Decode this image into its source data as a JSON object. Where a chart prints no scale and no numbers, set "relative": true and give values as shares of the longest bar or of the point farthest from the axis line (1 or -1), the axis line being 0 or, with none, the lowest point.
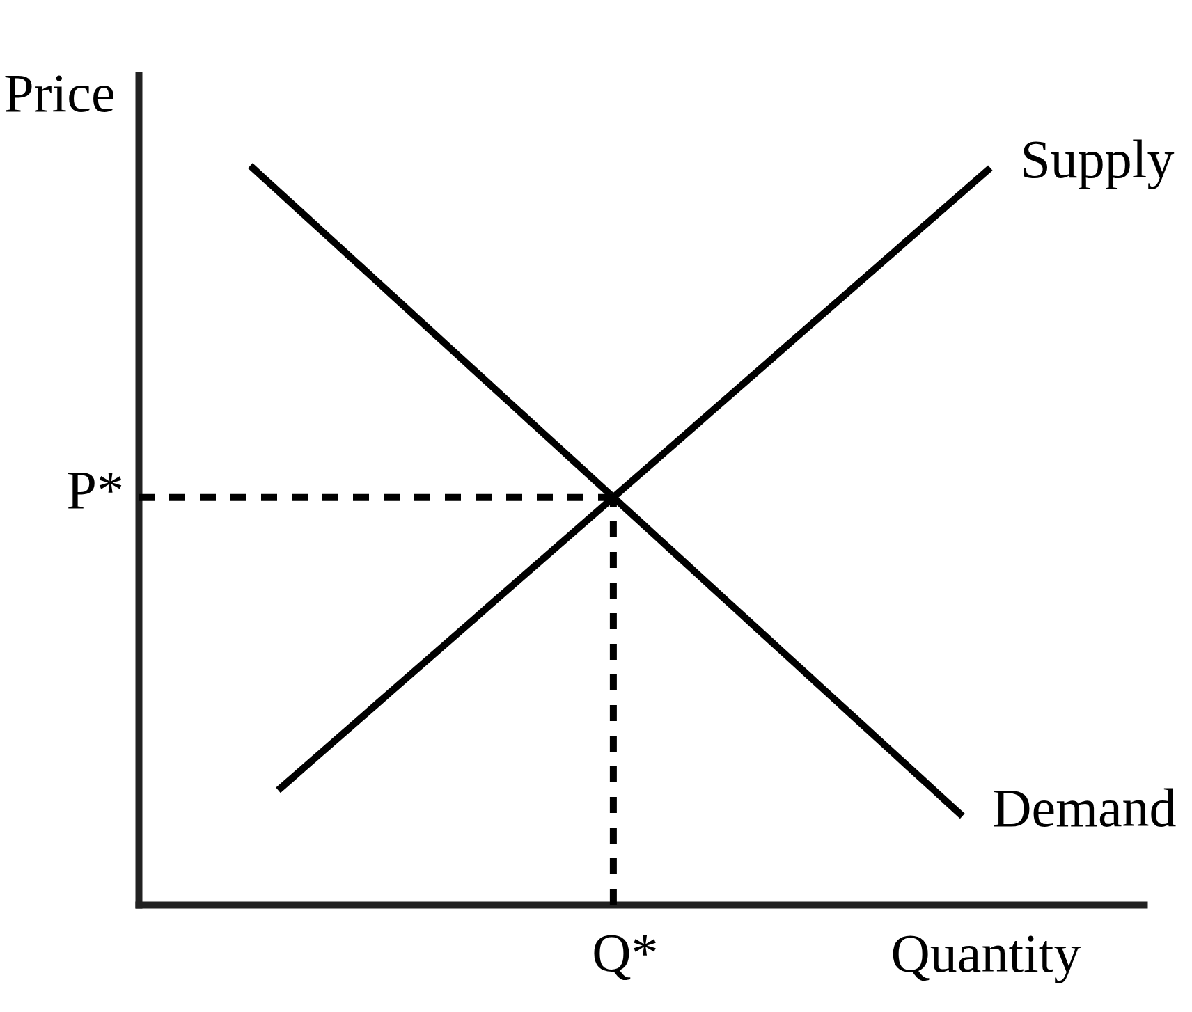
{
  "chart_data": {
    "type": "line",
    "relative": true,
    "xlabel": "Quantity",
    "ylabel": "Price",
    "categories": [
      null,
      null,
      null,
      null,
      null,
      null,
      null,
      null,
      null,
      null,
      null,
      null,
      null,
      null,
      null,
      null,
      null,
      null,
      null,
      null,
      null,
      null,
      null,
      null,
      null,
      null,
      null,
      null,
      null,
      null,
      null,
      null,
      null,
      null,
      null,
      null,
      null,
      null,
      null,
      null,
      null,
      null,
      null,
      null,
      null,
      null,
      null,
      null,
      null,
      null,
      null,
      null,
      null,
      null,
      null,
      null,
      null,
      null,
      null,
      null,
      null,
      null,
      null,
      null,
      null,
      null,
      null,
      null,
      null,
      null,
      null,
      null,
      null
    ],
    "series": [
      {
        "name": "Supply",
        "color": "#000000",
        "values": [
          null,
          null,
          null,
          null,
          null,
          null,
          null,
          null,
          null,
          null,
          0.155,
          0.1715,
          0.188,
          0.2045,
          0.221,
          0.2376,
          0.2541,
          0.2706,
          0.2871,
          0.3036,
          0.3201,
          0.3366,
          0.3531,
          0.3696,
          0.3861,
          0.4027,
          0.4192,
          0.4357,
          0.4522,
          0.4687,
          0.4852,
          0.5017,
          0.5182,
          0.5347,
          0.5512,
          0.5678,
          0.5843,
          0.6008,
          0.6173,
          0.6338,
          0.6503,
          0.6668,
          0.6833,
          0.6998,
          0.7163,
          0.7329,
          0.7494,
          0.7659,
          0.7824,
          0.7989,
          0.8154,
          0.8319,
          0.8484,
          0.8649,
          0.8814,
          0.898,
          0.9145,
          0.931,
          0.9475,
          0.964,
          0.9805,
          0.997,
          null,
          null,
          null,
          null,
          null,
          null,
          null,
          null,
          null,
          null,
          null
        ]
      },
      {
        "name": "Demand",
        "color": "#000000",
        "values": [
          null,
          null,
          null,
          null,
          null,
          null,
          null,
          null,
          1.0,
          0.9827,
          0.9655,
          0.9482,
          0.931,
          0.9137,
          0.8965,
          0.8792,
          0.862,
          0.8447,
          0.8275,
          0.8102,
          0.7929,
          0.7757,
          0.7584,
          0.7412,
          0.7239,
          0.7067,
          0.6894,
          0.6722,
          0.6549,
          0.6376,
          0.6204,
          0.6031,
          0.5859,
          0.5686,
          0.5514,
          0.5341,
          0.5169,
          0.4996,
          0.4824,
          0.4651,
          0.4478,
          0.4306,
          0.4133,
          0.3961,
          0.3788,
          0.3616,
          0.3443,
          0.3271,
          0.3098,
          0.2925,
          0.2753,
          0.258,
          0.2408,
          0.2235,
          0.2063,
          0.189,
          0.1718,
          0.1545,
          0.1373,
          0.12,
          null,
          null,
          null,
          null,
          null,
          null,
          null,
          null,
          null,
          null,
          null,
          null,
          null
        ]
      }
    ],
    "ref_lines": [
      {
        "axis": "y",
        "value": 0.551,
        "label": "P*",
        "line_style": "dashed",
        "color": "#000000"
      }
    ],
    "annotations": [
      "Q*"
    ]
  }
}
